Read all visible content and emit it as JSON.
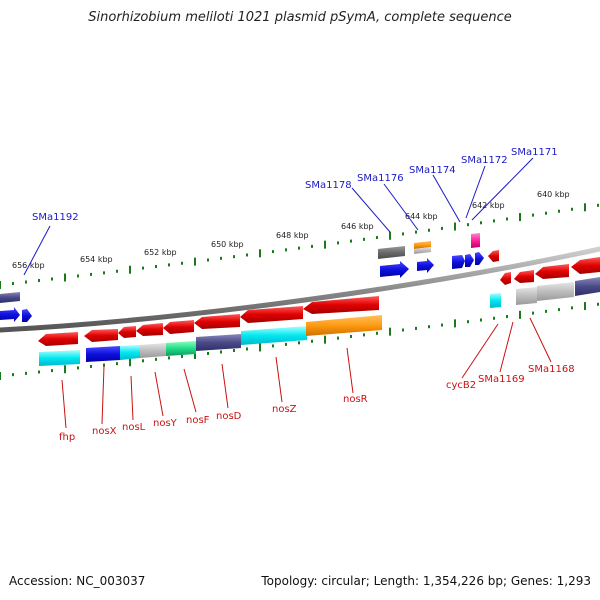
{
  "title": "Sinorhizobium meliloti 1021 plasmid pSymA, complete sequence",
  "footer": {
    "accession": "Accession: NC_003037",
    "topology": "Topology: circular; Length: 1,354,226 bp; Genes: 1,293"
  },
  "kbp_labels": [
    "656 kbp",
    "654 kbp",
    "652 kbp",
    "650 kbp",
    "648 kbp",
    "646 kbp",
    "644 kbp",
    "642 kbp",
    "640 kbp"
  ],
  "upper_gene_labels": [
    "SMa1192",
    "SMa1178",
    "SMa1176",
    "SMa1174",
    "SMa1172",
    "SMa1171"
  ],
  "lower_gene_labels": [
    "fhp",
    "nosX",
    "nosL",
    "nosY",
    "nosF",
    "nosD",
    "nosZ",
    "nosR",
    "cycB2",
    "SMa1169",
    "SMa1168"
  ],
  "colors": {
    "forward_gene": "#1010e0",
    "reverse_gene": "#e00000",
    "backbone": "#777777",
    "tick": "#1a7a1a",
    "upper_label": "#1a1ac8",
    "lower_label": "#cc1111"
  }
}
